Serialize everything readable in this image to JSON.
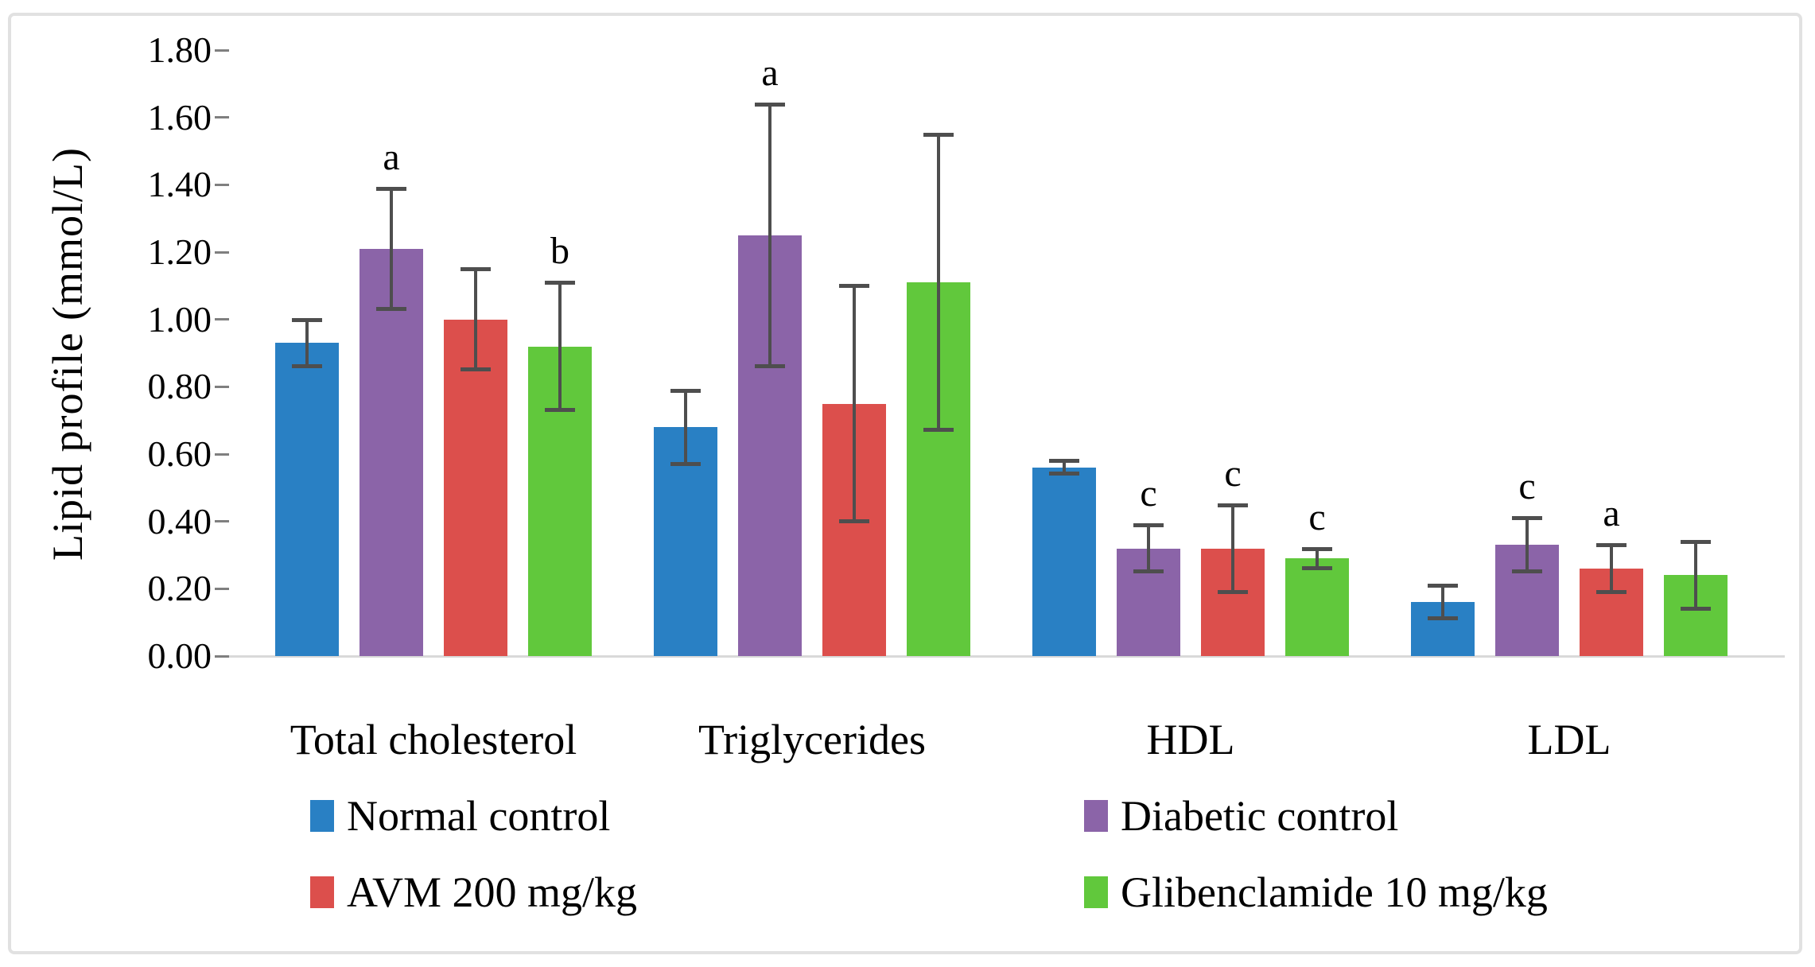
{
  "figure": {
    "background": "#ffffff",
    "border_color": "#e1e1e1"
  },
  "chart_data": {
    "type": "bar",
    "title": "",
    "xlabel": "",
    "ylabel": "Lipid profile (mmol/L)",
    "ylim": [
      0,
      1.8
    ],
    "ytick_step": 0.2,
    "ytick_labels": [
      "0.00",
      "0.20",
      "0.40",
      "0.60",
      "0.80",
      "1.00",
      "1.20",
      "1.40",
      "1.60",
      "1.80"
    ],
    "grid": false,
    "legend_position": "bottom-two-columns",
    "categories": [
      "Total cholesterol",
      "Triglycerides",
      "HDL",
      "LDL"
    ],
    "series": [
      {
        "name": "Normal control",
        "color": "#2980c4",
        "values": [
          0.93,
          0.68,
          0.56,
          0.16
        ],
        "errors": [
          0.07,
          0.11,
          0.02,
          0.05
        ],
        "letters": [
          "",
          "",
          "",
          ""
        ]
      },
      {
        "name": "Diabetic control",
        "color": "#8b64a8",
        "values": [
          1.21,
          1.25,
          0.32,
          0.33
        ],
        "errors": [
          0.18,
          0.39,
          0.07,
          0.08
        ],
        "letters": [
          "a",
          "a",
          "c",
          "c"
        ]
      },
      {
        "name": "AVM 200 mg/kg",
        "color": "#dc4f4c",
        "values": [
          1.0,
          0.75,
          0.32,
          0.26
        ],
        "errors": [
          0.15,
          0.35,
          0.13,
          0.07
        ],
        "letters": [
          "",
          "",
          "c",
          "a"
        ]
      },
      {
        "name": "Glibenclamide 10 mg/kg",
        "color": "#61c83c",
        "values": [
          0.92,
          1.11,
          0.29,
          0.24
        ],
        "errors": [
          0.19,
          0.44,
          0.03,
          0.1
        ],
        "letters": [
          "b",
          "",
          "c",
          ""
        ]
      }
    ],
    "error_bar_color": "#4e4e4e",
    "axis_line_color": "#d9d9d9",
    "tick_mark_color": "#7f7f7f"
  }
}
